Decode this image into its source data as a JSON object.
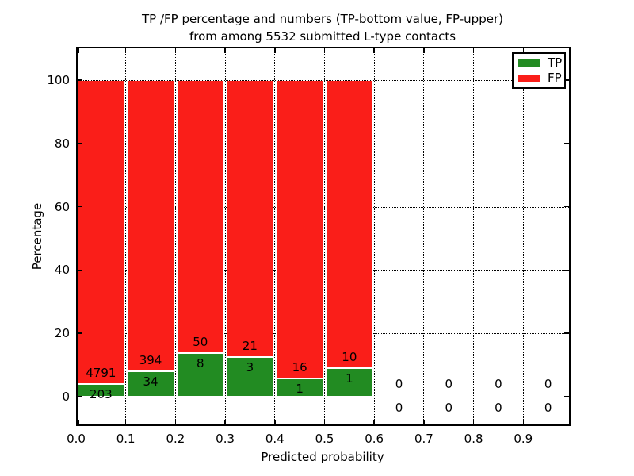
{
  "title": {
    "line1": "TP /FP percentage and numbers (TP-bottom value, FP-upper)",
    "line2": "from among 5532 submitted L-type contacts"
  },
  "axes": {
    "xlabel": "Predicted probability",
    "ylabel": "Percentage",
    "xtick_labels": [
      "0.0",
      "0.1",
      "0.2",
      "0.3",
      "0.4",
      "0.5",
      "0.6",
      "0.7",
      "0.8",
      "0.9"
    ],
    "ytick_labels": [
      "0",
      "20",
      "40",
      "60",
      "80",
      "100"
    ],
    "ytick_values": [
      0,
      20,
      40,
      60,
      80,
      100
    ]
  },
  "legend": {
    "items": [
      {
        "label": "TP",
        "color": "#228b22"
      },
      {
        "label": "FP",
        "color": "#fa1e19"
      }
    ]
  },
  "colors": {
    "tp": "#228b22",
    "fp": "#fa1e19",
    "grid": "#000000",
    "background": "#ffffff"
  },
  "chart_data": {
    "type": "bar",
    "stacked": true,
    "title": "TP /FP percentage and numbers (TP-bottom value, FP-upper) from among 5532 submitted L-type contacts",
    "xlabel": "Predicted probability",
    "ylabel": "Percentage",
    "xlim": [
      0.0,
      1.0
    ],
    "ylim": [
      -10,
      110
    ],
    "grid": true,
    "legend_position": "upper right",
    "bin_edges": [
      0.0,
      0.1,
      0.2,
      0.3,
      0.4,
      0.5,
      0.6,
      0.7,
      0.8,
      0.9,
      1.0
    ],
    "series": [
      {
        "name": "TP",
        "counts": [
          203,
          34,
          8,
          3,
          1,
          1,
          0,
          0,
          0,
          0
        ],
        "percent": [
          4.06,
          7.94,
          13.79,
          12.5,
          5.88,
          9.09,
          0,
          0,
          0,
          0
        ]
      },
      {
        "name": "FP",
        "counts": [
          4791,
          394,
          50,
          21,
          16,
          10,
          0,
          0,
          0,
          0
        ],
        "percent": [
          95.94,
          92.06,
          86.21,
          87.5,
          94.12,
          90.91,
          0,
          0,
          0,
          0
        ]
      }
    ],
    "total_submitted": 5532
  }
}
